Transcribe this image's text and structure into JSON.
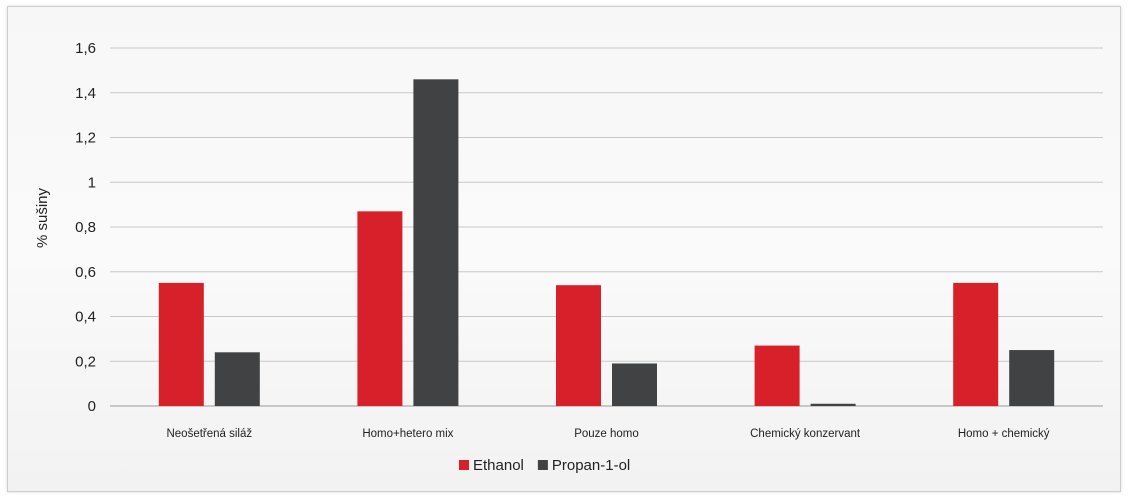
{
  "chart_data": {
    "type": "bar",
    "title": "",
    "xlabel": "",
    "ylabel": "% sušiny",
    "ylim": [
      0,
      1.6
    ],
    "yticks": [
      0,
      0.2,
      0.4,
      0.6,
      0.8,
      1,
      1.2,
      1.4,
      1.6
    ],
    "ytick_labels": [
      "0",
      "0,2",
      "0,4",
      "0,6",
      "0,8",
      "1",
      "1,2",
      "1,4",
      "1,6"
    ],
    "categories": [
      "Neošetřená siláž",
      "Homo+hetero mix",
      "Pouze homo",
      "Chemický konzervant",
      "Homo + chemický"
    ],
    "series": [
      {
        "name": "Ethanol",
        "color": "#d7202a",
        "values": [
          0.55,
          0.87,
          0.54,
          0.27,
          0.55
        ]
      },
      {
        "name": "Propan-1-ol",
        "color": "#404243",
        "values": [
          0.24,
          1.46,
          0.19,
          0.01,
          0.25
        ]
      }
    ],
    "grid": true,
    "legend_position": "bottom-center"
  }
}
